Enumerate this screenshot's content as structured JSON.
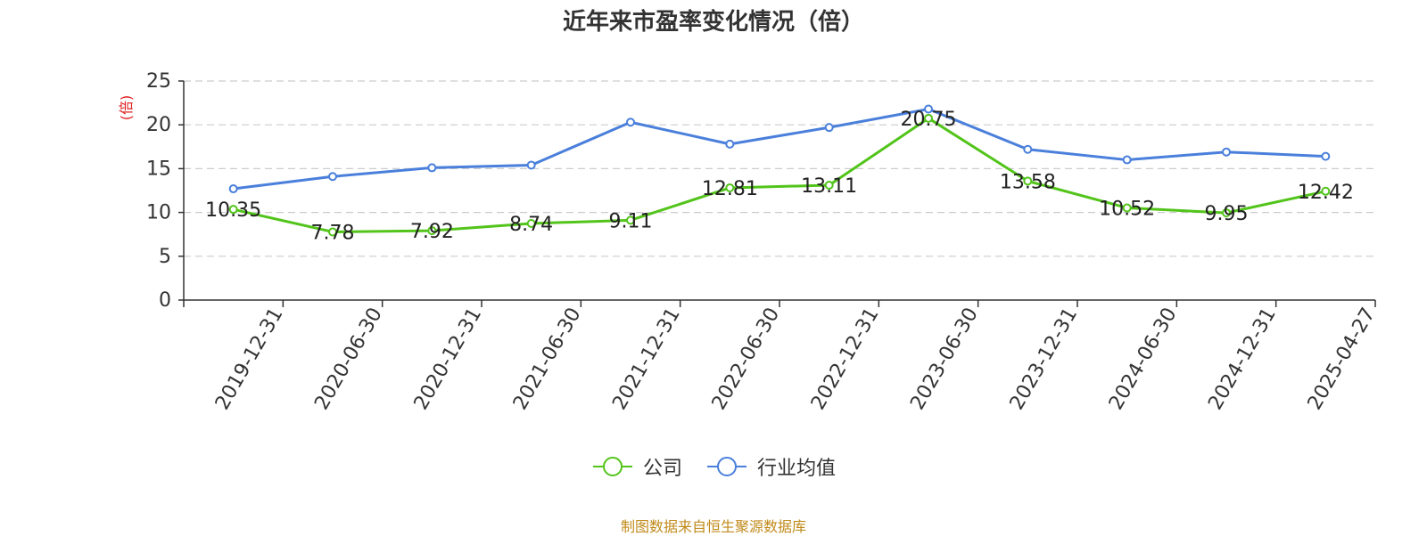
{
  "title": "近年来市盈率变化情况（倍）",
  "source": "制图数据来自恒生聚源数据库",
  "colors": {
    "company": "#52c41a",
    "industry": "#4a7fdb",
    "unit": "#e02020"
  },
  "chart_data": {
    "type": "line",
    "unit_label": "(倍)",
    "categories": [
      "2019-12-31",
      "2020-06-30",
      "2020-12-31",
      "2021-06-30",
      "2021-12-31",
      "2022-06-30",
      "2022-12-31",
      "2023-06-30",
      "2023-12-31",
      "2024-06-30",
      "2024-12-31",
      "2025-04-27"
    ],
    "series": [
      {
        "name": "公司",
        "values": [
          10.35,
          7.78,
          7.92,
          8.74,
          9.11,
          12.81,
          13.11,
          20.75,
          13.58,
          10.52,
          9.95,
          12.42
        ],
        "labels": [
          "10.35",
          "7.78",
          "7.92",
          "8.74",
          "9.11",
          "12.81",
          "13.11",
          "20.75",
          "13.58",
          "10.52",
          "9.95",
          "12.42"
        ]
      },
      {
        "name": "行业均值",
        "values": [
          12.7,
          14.1,
          15.1,
          15.4,
          20.3,
          17.8,
          19.7,
          21.8,
          17.2,
          16.0,
          16.9,
          16.4
        ]
      }
    ],
    "ylim": [
      0,
      25
    ],
    "yticks": [
      0,
      5,
      10,
      15,
      20,
      25
    ],
    "grid": true,
    "legend": "bottom-center"
  }
}
